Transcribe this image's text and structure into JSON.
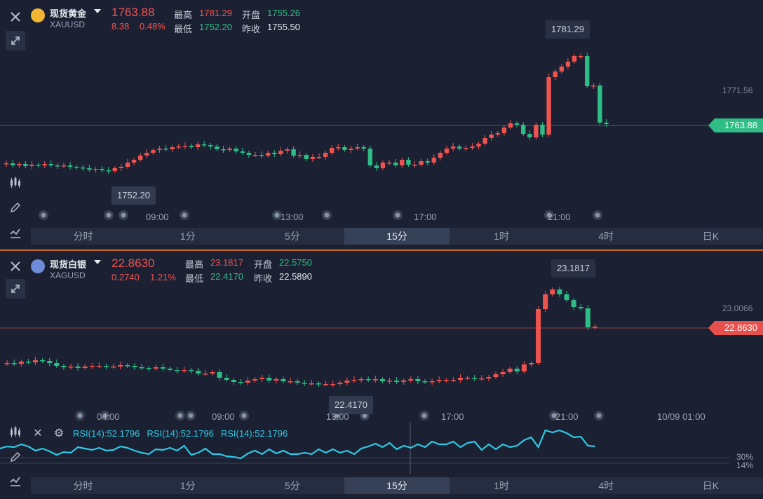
{
  "gold": {
    "name": "现货黄金",
    "code": "XAUUSD",
    "price": "1763.88",
    "change": "8.38",
    "change_pct": "0.48%",
    "high_label": "最高",
    "high": "1781.29",
    "open_label": "开盘",
    "open": "1755.26",
    "low_label": "最低",
    "low": "1752.20",
    "prev_label": "昨收",
    "prev": "1755.50",
    "callout_high": "1781.29",
    "callout_low": "1752.20",
    "axis_level": "1771.56",
    "price_tag": "1763.88",
    "time_labels": [
      "09:00",
      "13:00",
      "17:00",
      "21:00"
    ]
  },
  "silver": {
    "name": "现货白银",
    "code": "XAGUSD",
    "price": "22.8630",
    "change": "0.2740",
    "change_pct": "1.21%",
    "high_label": "最高",
    "high": "23.1817",
    "open_label": "开盘",
    "open": "22.5750",
    "low_label": "最低",
    "low": "22.4170",
    "prev_label": "昨收",
    "prev": "22.5890",
    "callout_high": "23.1817",
    "callout_low": "22.4170",
    "axis_level": "23.0066",
    "price_tag": "22.8630",
    "time_labels": [
      "04:00",
      "09:00",
      "13:00",
      "17:00",
      "21:00",
      "10/09 01:00"
    ]
  },
  "rsi": {
    "labels": [
      "RSI(14):52.1796",
      "RSI(14):52.1796",
      "RSI(14):52.1796"
    ],
    "level_30": "30%",
    "level_14": "14%"
  },
  "tabs": [
    "分时",
    "1分",
    "5分",
    "15分",
    "1时",
    "4时",
    "日K"
  ],
  "active_tab": "15分",
  "colors": {
    "up": "#ef5350",
    "down": "#2ebd85",
    "accent_divider": "#c66a23",
    "rsi_line": "#2dc9e6"
  }
}
